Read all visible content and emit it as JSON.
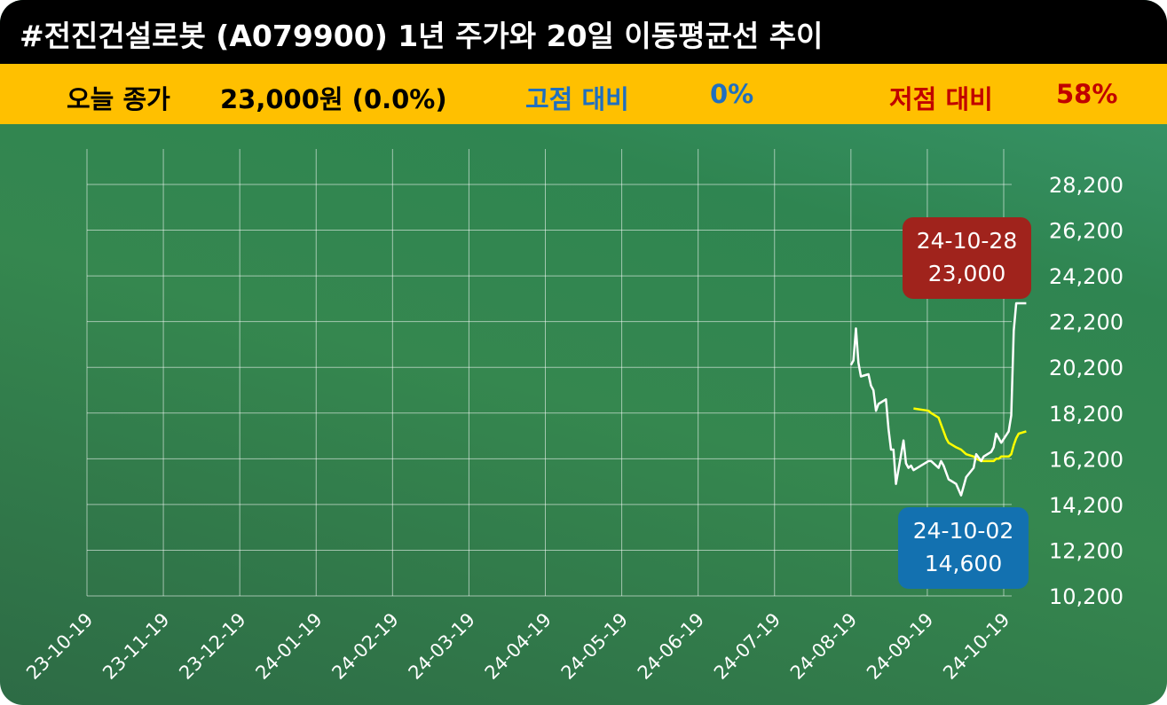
{
  "title": "#전진건설로봇 (A079900) 1년 주가와 20일 이동평균선 추이",
  "stats": {
    "close_label": "오늘 종가",
    "close_value": "23,000원 (0.0%)",
    "high_label": "고점 대비",
    "high_value": "0%",
    "low_label": "저점 대비",
    "low_value": "58%"
  },
  "colors": {
    "title_bar": "#000000",
    "stats_bar": "#ffc000",
    "high_text": "#1f6fc0",
    "low_text": "#c00000",
    "price_line": "#ffffff",
    "ma_line": "#ffff00",
    "high_box": "#a0231c",
    "low_box": "#1371b0"
  },
  "chart_data": {
    "type": "line",
    "x_ticks": [
      "23-10-19",
      "23-11-19",
      "23-12-19",
      "24-01-19",
      "24-02-19",
      "24-03-19",
      "24-04-19",
      "24-05-19",
      "24-06-19",
      "24-07-19",
      "24-08-19",
      "24-09-19",
      "24-10-19"
    ],
    "y_ticks": [
      "10,200",
      "12,200",
      "14,200",
      "16,200",
      "18,200",
      "20,200",
      "22,200",
      "24,200",
      "26,200",
      "28,200"
    ],
    "ylim": [
      10200,
      28200
    ],
    "grid": true,
    "series": [
      {
        "role": "price",
        "x": [
          "2024-08-19",
          "2024-08-20",
          "2024-08-21",
          "2024-08-22",
          "2024-08-23",
          "2024-08-26",
          "2024-08-27",
          "2024-08-28",
          "2024-08-29",
          "2024-08-30",
          "2024-09-02",
          "2024-09-03",
          "2024-09-04",
          "2024-09-05",
          "2024-09-06",
          "2024-09-09",
          "2024-09-10",
          "2024-09-11",
          "2024-09-12",
          "2024-09-13",
          "2024-09-19",
          "2024-09-20",
          "2024-09-23",
          "2024-09-24",
          "2024-09-25",
          "2024-09-26",
          "2024-09-27",
          "2024-09-30",
          "2024-10-02",
          "2024-10-04",
          "2024-10-07",
          "2024-10-08",
          "2024-10-10",
          "2024-10-11",
          "2024-10-14",
          "2024-10-15",
          "2024-10-16",
          "2024-10-17",
          "2024-10-18",
          "2024-10-21",
          "2024-10-22",
          "2024-10-23",
          "2024-10-24",
          "2024-10-25",
          "2024-10-28"
        ],
        "y": [
          20300,
          20500,
          21900,
          20400,
          19800,
          19900,
          19400,
          19200,
          18300,
          18600,
          18800,
          17500,
          16600,
          16600,
          15100,
          17000,
          16000,
          15800,
          15900,
          15700,
          16100,
          16100,
          15800,
          16100,
          15900,
          15600,
          15300,
          15100,
          14600,
          15400,
          15800,
          16400,
          16100,
          16300,
          16500,
          16700,
          17300,
          17100,
          16900,
          17400,
          18100,
          21800,
          23000,
          23000,
          23000
        ]
      },
      {
        "role": "ma20",
        "x": [
          "2024-09-13",
          "2024-09-19",
          "2024-09-20",
          "2024-09-23",
          "2024-09-24",
          "2024-09-25",
          "2024-09-26",
          "2024-09-27",
          "2024-09-30",
          "2024-10-02",
          "2024-10-04",
          "2024-10-07",
          "2024-10-08",
          "2024-10-10",
          "2024-10-11",
          "2024-10-14",
          "2024-10-15",
          "2024-10-16",
          "2024-10-17",
          "2024-10-18",
          "2024-10-21",
          "2024-10-22",
          "2024-10-23",
          "2024-10-24",
          "2024-10-25",
          "2024-10-28"
        ],
        "y": [
          18400,
          18300,
          18200,
          18000,
          17700,
          17400,
          17100,
          16900,
          16700,
          16600,
          16400,
          16300,
          16200,
          16100,
          16100,
          16100,
          16100,
          16200,
          16200,
          16300,
          16300,
          16400,
          16800,
          17100,
          17300,
          17400
        ]
      }
    ],
    "annotations": [
      {
        "kind": "high",
        "date": "24-10-28",
        "value": "23,000"
      },
      {
        "kind": "low",
        "date": "24-10-02",
        "value": "14,600"
      }
    ]
  }
}
